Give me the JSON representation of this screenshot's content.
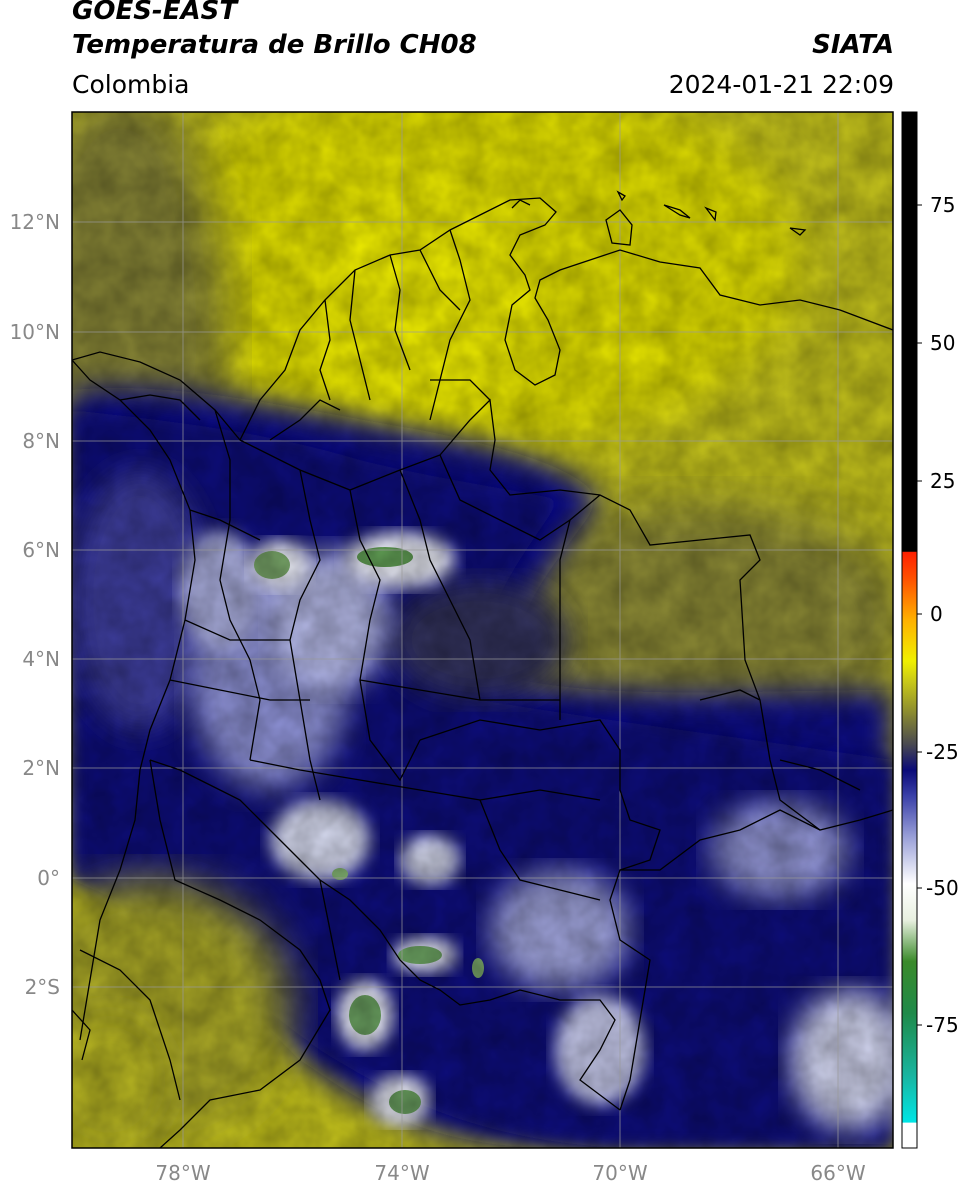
{
  "header": {
    "title_line1": "GOES-EAST",
    "title_line2": "Temperatura de Brillo CH08",
    "organization": "SIATA",
    "region": "Colombia",
    "datetime": "2024-01-21 22:09"
  },
  "map": {
    "lat_ticks": [
      {
        "value": 12,
        "label": "12°N"
      },
      {
        "value": 10,
        "label": "10°N"
      },
      {
        "value": 8,
        "label": "8°N"
      },
      {
        "value": 6,
        "label": "6°N"
      },
      {
        "value": 4,
        "label": "4°N"
      },
      {
        "value": 2,
        "label": "2°N"
      },
      {
        "value": 0,
        "label": "0°"
      },
      {
        "value": -2,
        "label": "2°S"
      }
    ],
    "lon_ticks": [
      {
        "value": -78,
        "label": "78°W"
      },
      {
        "value": -74,
        "label": "74°W"
      },
      {
        "value": -70,
        "label": "70°W"
      },
      {
        "value": -66,
        "label": "66°W"
      }
    ]
  },
  "colorbar": {
    "ticks": [
      {
        "value": 75,
        "label": "75"
      },
      {
        "value": 50,
        "label": "50"
      },
      {
        "value": 25,
        "label": "25"
      },
      {
        "value": 0,
        "label": "0"
      },
      {
        "value": -25,
        "label": "-25"
      },
      {
        "value": -50,
        "label": "-50"
      },
      {
        "value": -75,
        "label": "-75"
      }
    ]
  }
}
